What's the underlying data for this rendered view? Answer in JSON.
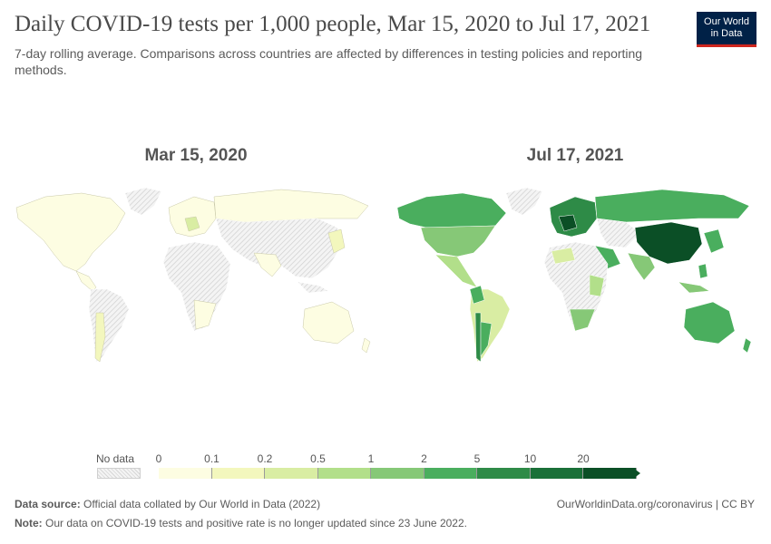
{
  "header": {
    "title": "Daily COVID-19 tests per 1,000 people, Mar 15, 2020 to Jul 17, 2021",
    "subtitle": "7-day rolling average. Comparisons across countries are affected by differences in testing policies and reporting methods.",
    "logo_line1": "Our World",
    "logo_line2": "in Data"
  },
  "maps": {
    "left_label": "Mar 15, 2020",
    "right_label": "Jul 17, 2021"
  },
  "legend": {
    "no_data_label": "No data",
    "ticks": [
      "0",
      "0.1",
      "0.2",
      "0.5",
      "1",
      "2",
      "5",
      "10",
      "20"
    ],
    "colors": [
      "#fdfde2",
      "#f3f7bd",
      "#d9eda3",
      "#b2df8a",
      "#86c877",
      "#4aae5e",
      "#2e8b47",
      "#1a7038",
      "#0b4f26"
    ],
    "no_data_color": "#d6d6d6"
  },
  "footer": {
    "source_label": "Data source:",
    "source_text": "Official data collated by Our World in Data (2022)",
    "note_label": "Note:",
    "note_text": "Our data on COVID-19 tests and positive rate is no longer updated since 23 June 2022.",
    "url": "OurWorldinData.org/coronavirus | CC BY"
  }
}
